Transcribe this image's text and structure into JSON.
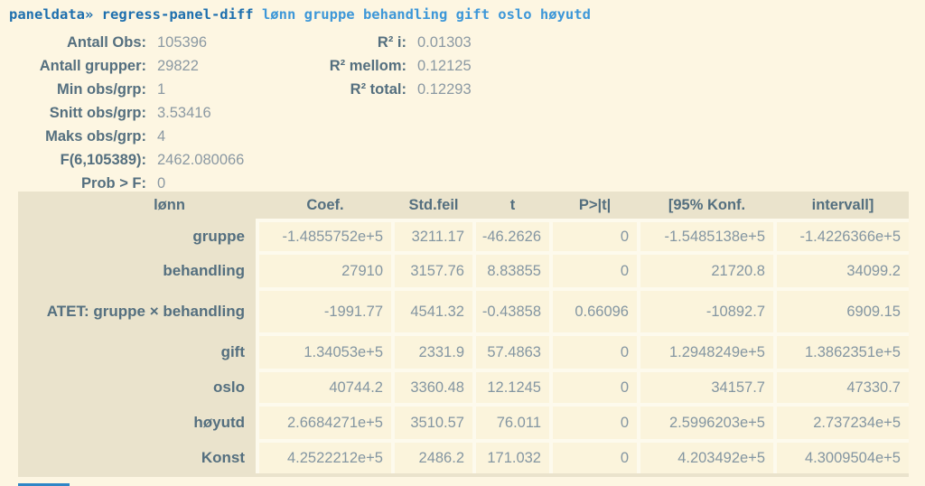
{
  "command": {
    "prompt": "paneldata»",
    "name": " regress-panel-diff",
    "args": " lønn gruppe behandling gift oslo høyutd"
  },
  "summary": {
    "left": [
      {
        "label": "Antall Obs:",
        "value": "105396"
      },
      {
        "label": "Antall grupper:",
        "value": "29822"
      },
      {
        "label": "Min obs/grp:",
        "value": "1"
      },
      {
        "label": "Snitt obs/grp:",
        "value": "3.53416"
      },
      {
        "label": "Maks obs/grp:",
        "value": "4"
      },
      {
        "label": "F(6,105389):",
        "value": "2462.080066"
      },
      {
        "label": "Prob > F:",
        "value": "0"
      }
    ],
    "right": [
      {
        "label": "R² i:",
        "value": "0.01303"
      },
      {
        "label": "R² mellom:",
        "value": "0.12125"
      },
      {
        "label": "R² total:",
        "value": "0.12293"
      }
    ]
  },
  "table": {
    "dependent_var_header": "lønn",
    "headers": [
      "Coef.",
      "Std.feil",
      "t",
      "P>|t|",
      "[95% Konf.",
      "intervall]"
    ],
    "rows": [
      {
        "label": "gruppe",
        "values": [
          "-1.4855752e+5",
          "3211.17",
          "-46.2626",
          "0",
          "-1.5485138e+5",
          "-1.4226366e+5"
        ]
      },
      {
        "label": "behandling",
        "values": [
          "27910",
          "3157.76",
          "8.83855",
          "0",
          "21720.8",
          "34099.2"
        ]
      },
      {
        "label": "ATET: gruppe × behandling",
        "values": [
          "-1991.77",
          "4541.32",
          "-0.43858",
          "0.66096",
          "-10892.7",
          "6909.15"
        ]
      },
      {
        "label": "gift",
        "values": [
          "1.34053e+5",
          "2331.9",
          "57.4863",
          "0",
          "1.2948249e+5",
          "1.3862351e+5"
        ]
      },
      {
        "label": "oslo",
        "values": [
          "40744.2",
          "3360.48",
          "12.1245",
          "0",
          "34157.7",
          "47330.7"
        ]
      },
      {
        "label": "høyutd",
        "values": [
          "2.6684271e+5",
          "3510.57",
          "76.011",
          "0",
          "2.5996203e+5",
          "2.737234e+5"
        ]
      },
      {
        "label": "Konst",
        "values": [
          "4.2522212e+5",
          "2486.2",
          "171.032",
          "0",
          "4.203492e+5",
          "4.3009504e+5"
        ]
      }
    ]
  },
  "colors": {
    "page_background": "#fdf6e2",
    "panel_beige": "#eae3cc",
    "cell_cream": "#fbf4dc",
    "cell_gap": "#fdfaed",
    "label_text": "#546f7f",
    "value_text": "#8496a2",
    "command_blue_dark": "#1d6fae",
    "command_blue_light": "#3d97d8",
    "cursor_blue": "#2f86c6"
  }
}
